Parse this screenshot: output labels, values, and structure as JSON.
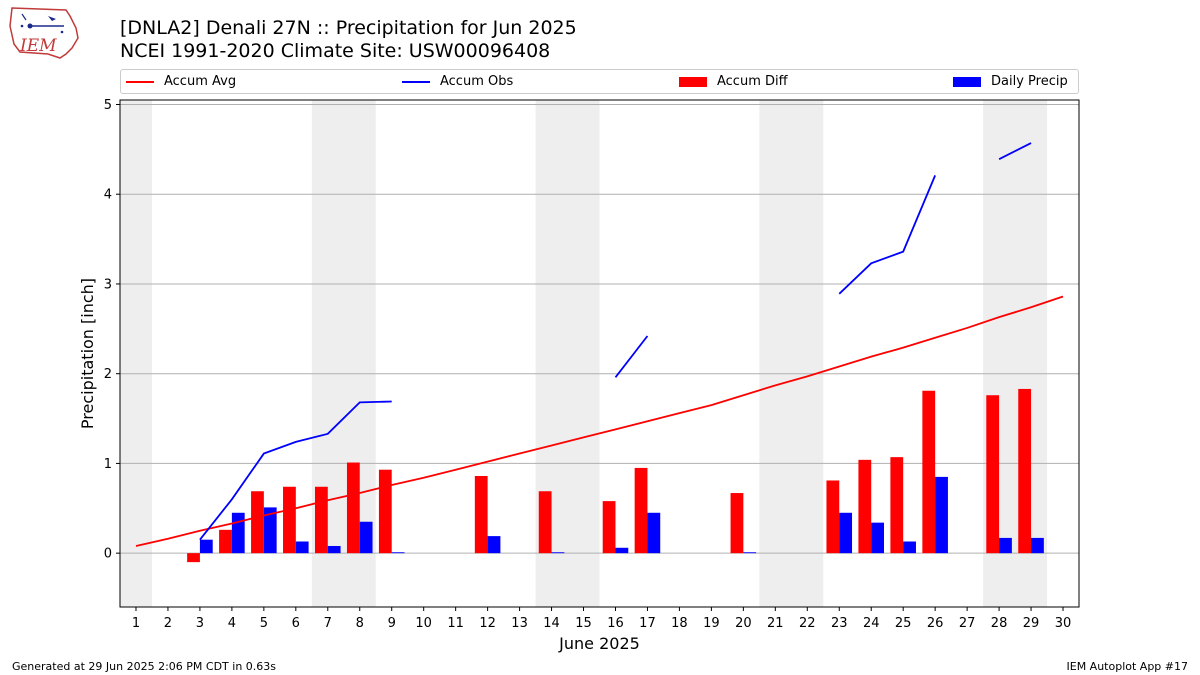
{
  "header": {
    "title_line1": "[DNLA2] Denali 27N :: Precipitation for Jun 2025",
    "title_line2": "NCEI 1991-2020 Climate Site: USW00096408",
    "logo_text": "IEM"
  },
  "legend": {
    "accum_avg": "Accum Avg",
    "accum_obs": "Accum Obs",
    "accum_diff": "Accum Diff",
    "daily_precip": "Daily Precip"
  },
  "footer": {
    "generated": "Generated at 29 Jun 2025 2:06 PM CDT in 0.63s",
    "app": "IEM Autoplot App #17"
  },
  "chart_data": {
    "type": "bar",
    "xlabel": "June 2025",
    "ylabel": "Precipitation [inch]",
    "xlim": [
      0.5,
      30.5
    ],
    "ylim": [
      -0.6,
      5.05
    ],
    "yticks": [
      0,
      1,
      2,
      3,
      4,
      5
    ],
    "xticks": [
      1,
      2,
      3,
      4,
      5,
      6,
      7,
      8,
      9,
      10,
      11,
      12,
      13,
      14,
      15,
      16,
      17,
      18,
      19,
      20,
      21,
      22,
      23,
      24,
      25,
      26,
      27,
      28,
      29,
      30
    ],
    "grid": "y",
    "legend_position": "top",
    "weekend_shading": [
      [
        0.5,
        1.5
      ],
      [
        6.5,
        8.5
      ],
      [
        13.5,
        15.5
      ],
      [
        20.5,
        22.5
      ],
      [
        27.5,
        29.5
      ]
    ],
    "colors": {
      "accum_avg": "#ff0000",
      "accum_obs": "#0000ff",
      "accum_diff": "#ff0000",
      "daily_precip": "#0000ff",
      "shade": "#eeeeee",
      "grid": "#b0b0b0"
    },
    "series": [
      {
        "name": "Accum Avg",
        "kind": "line",
        "x": [
          1,
          2,
          3,
          4,
          5,
          6,
          7,
          8,
          9,
          10,
          11,
          12,
          13,
          14,
          15,
          16,
          17,
          18,
          19,
          20,
          21,
          22,
          23,
          24,
          25,
          26,
          27,
          28,
          29,
          30
        ],
        "values": [
          0.08,
          0.16,
          0.25,
          0.33,
          0.42,
          0.5,
          0.59,
          0.67,
          0.76,
          0.84,
          0.93,
          1.02,
          1.11,
          1.2,
          1.29,
          1.38,
          1.47,
          1.56,
          1.65,
          1.76,
          1.87,
          1.97,
          2.08,
          2.19,
          2.29,
          2.4,
          2.51,
          2.63,
          2.74,
          2.86
        ]
      },
      {
        "name": "Accum Obs",
        "kind": "line",
        "x": [
          3,
          4,
          5,
          6,
          7,
          8,
          9,
          10,
          11,
          12,
          13,
          14,
          15,
          16,
          17,
          18,
          19,
          20,
          21,
          22,
          23,
          24,
          25,
          26,
          27,
          28,
          29
        ],
        "values": [
          0.15,
          0.6,
          1.11,
          1.24,
          1.33,
          1.68,
          1.69,
          null,
          null,
          null,
          null,
          null,
          null,
          1.96,
          2.42,
          null,
          null,
          null,
          null,
          null,
          2.89,
          3.23,
          3.36,
          4.21,
          null,
          4.39,
          4.57
        ]
      },
      {
        "name": "Accum Diff",
        "kind": "bar",
        "offset": -0.2,
        "x": [
          3,
          4,
          5,
          6,
          7,
          8,
          9,
          12,
          14,
          16,
          17,
          20,
          23,
          24,
          25,
          26,
          28,
          29
        ],
        "values": [
          -0.1,
          0.26,
          0.69,
          0.74,
          0.74,
          1.01,
          0.93,
          0.86,
          0.69,
          0.58,
          0.95,
          0.67,
          0.81,
          1.04,
          1.07,
          1.81,
          1.76,
          1.83
        ]
      },
      {
        "name": "Daily Precip",
        "kind": "bar",
        "offset": 0.2,
        "x": [
          3,
          4,
          5,
          6,
          7,
          8,
          9,
          12,
          14,
          16,
          17,
          20,
          23,
          24,
          25,
          26,
          28,
          29
        ],
        "values": [
          0.15,
          0.45,
          0.51,
          0.13,
          0.08,
          0.35,
          0.01,
          0.19,
          0.01,
          0.06,
          0.45,
          0.01,
          0.45,
          0.34,
          0.13,
          0.85,
          0.17,
          0.17
        ]
      }
    ]
  }
}
